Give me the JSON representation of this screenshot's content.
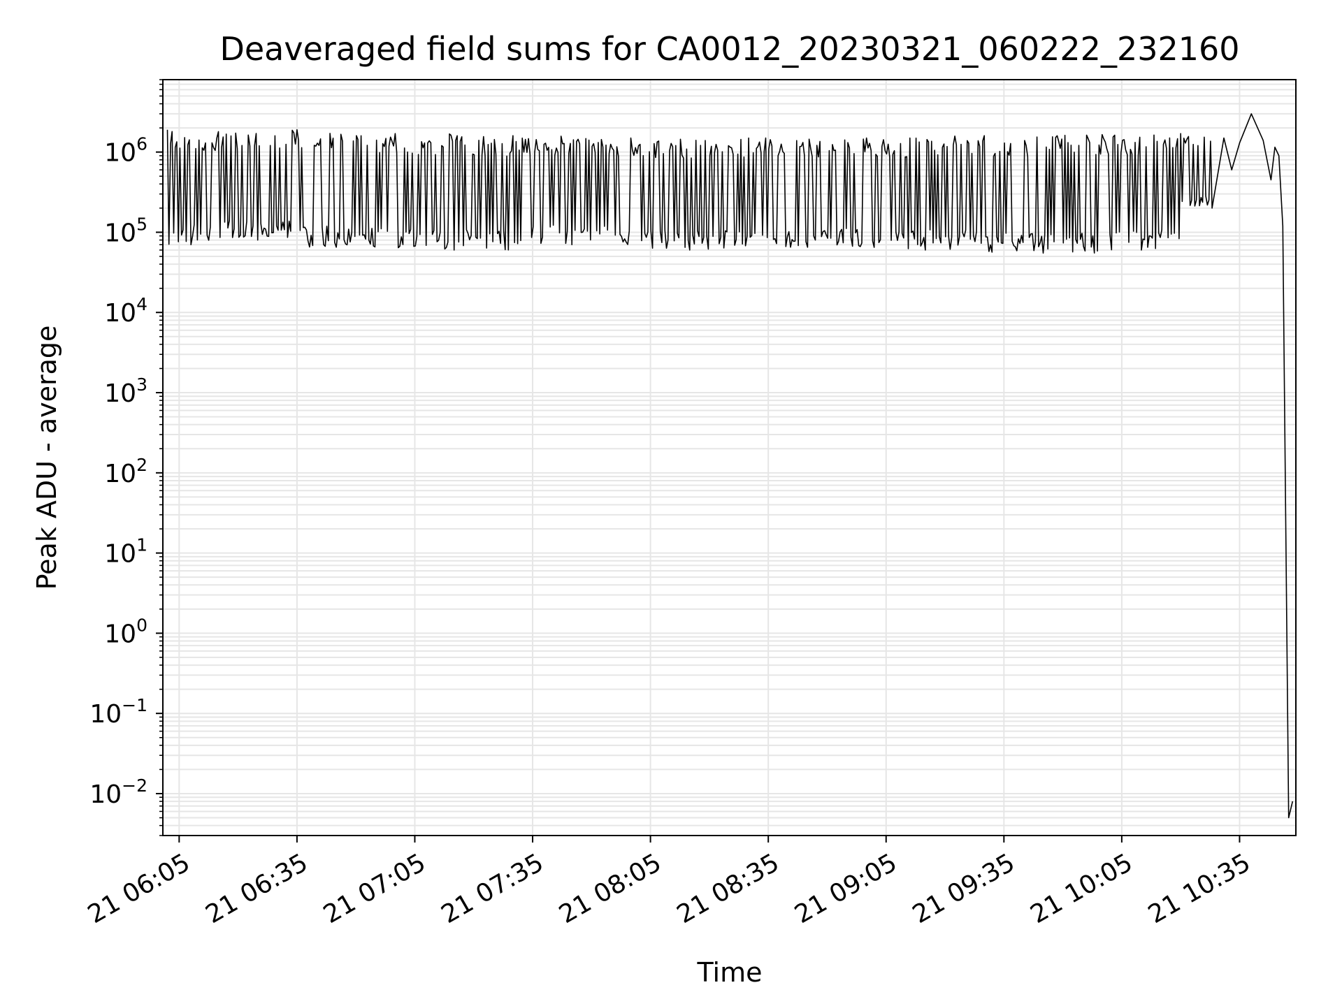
{
  "chart_data": {
    "type": "line",
    "title": "Deaveraged field sums for CA0012_20230321_060222_232160",
    "xlabel": "Time",
    "ylabel": "Peak ADU - average",
    "x_range": [
      "2023-03-21 06:00:51",
      "2023-03-21 10:49:20"
    ],
    "y_scale": "log",
    "ylim": [
      0.003,
      8000000
    ],
    "grid": {
      "major": true,
      "minor": true,
      "color": "#e6e6e6"
    },
    "line_color": "#000000",
    "x_ticks": [
      {
        "value": "2023-03-21 06:05",
        "label": "21 06:05"
      },
      {
        "value": "2023-03-21 06:35",
        "label": "21 06:35"
      },
      {
        "value": "2023-03-21 07:05",
        "label": "21 07:05"
      },
      {
        "value": "2023-03-21 07:35",
        "label": "21 07:35"
      },
      {
        "value": "2023-03-21 08:05",
        "label": "21 08:05"
      },
      {
        "value": "2023-03-21 08:35",
        "label": "21 08:35"
      },
      {
        "value": "2023-03-21 09:05",
        "label": "21 09:05"
      },
      {
        "value": "2023-03-21 09:35",
        "label": "21 09:35"
      },
      {
        "value": "2023-03-21 10:05",
        "label": "21 10:05"
      },
      {
        "value": "2023-03-21 10:35",
        "label": "21 10:35"
      }
    ],
    "y_ticks": [
      {
        "value": 0.01,
        "base": "10",
        "exp": "−2"
      },
      {
        "value": 0.1,
        "base": "10",
        "exp": "−1"
      },
      {
        "value": 1,
        "base": "10",
        "exp": "0"
      },
      {
        "value": 10,
        "base": "10",
        "exp": "1"
      },
      {
        "value": 100,
        "base": "10",
        "exp": "2"
      },
      {
        "value": 1000,
        "base": "10",
        "exp": "3"
      },
      {
        "value": 10000,
        "base": "10",
        "exp": "4"
      },
      {
        "value": 100000,
        "base": "10",
        "exp": "5"
      },
      {
        "value": 1000000,
        "base": "10",
        "exp": "6"
      }
    ],
    "series": [
      {
        "x": [
          "2023-03-21 06:02:00",
          "2023-03-21 06:08:00",
          "2023-03-21 06:15:00",
          "2023-03-21 06:25:00",
          "2023-03-21 06:35:00",
          "2023-03-21 06:45:00",
          "2023-03-21 07:00:00",
          "2023-03-21 07:15:00",
          "2023-03-21 07:30:00",
          "2023-03-21 07:45:00",
          "2023-03-21 08:00:00",
          "2023-03-21 08:15:00",
          "2023-03-21 08:30:00",
          "2023-03-21 08:45:00",
          "2023-03-21 09:00:00",
          "2023-03-21 09:15:00",
          "2023-03-21 09:30:00",
          "2023-03-21 09:45:00",
          "2023-03-21 10:00:00",
          "2023-03-21 10:10:00",
          "2023-03-21 10:20:00",
          "2023-03-21 10:28:00",
          "2023-03-21 10:31:00",
          "2023-03-21 10:33:00",
          "2023-03-21 10:35:00",
          "2023-03-21 10:38:00",
          "2023-03-21 10:41:00",
          "2023-03-21 10:43:00",
          "2023-03-21 10:44:00",
          "2023-03-21 10:45:00",
          "2023-03-21 10:46:00",
          "2023-03-21 10:47:30",
          "2023-03-21 10:48:30"
        ],
        "y": [
          1900000,
          70000,
          1800000,
          80000,
          1900000,
          65000,
          1700000,
          60000,
          1600000,
          70000,
          1500000,
          60000,
          1500000,
          65000,
          1500000,
          60000,
          1600000,
          55000,
          1650000,
          60000,
          1700000,
          200000,
          1500000,
          600000,
          1300000,
          3000000,
          1400000,
          450000,
          1150000,
          900000,
          120000,
          0.005,
          0.008
        ]
      }
    ]
  }
}
